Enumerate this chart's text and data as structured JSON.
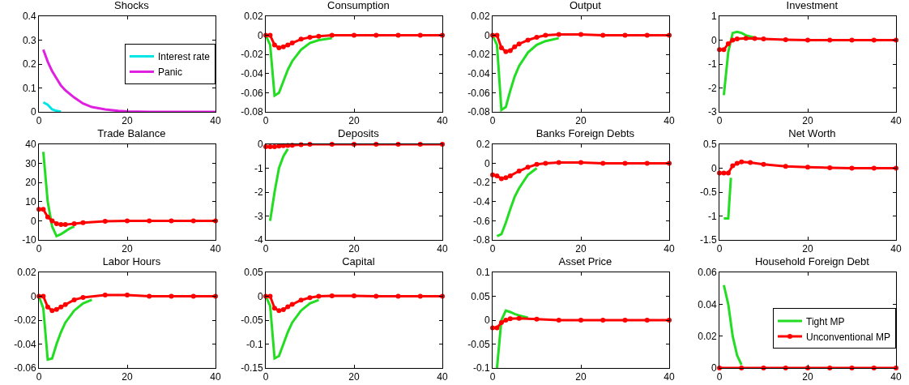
{
  "chart_data": [
    {
      "type": "line",
      "title": "Shocks",
      "xlim": [
        0,
        40
      ],
      "xticks": [
        0,
        20,
        40
      ],
      "ylim": [
        0,
        0.4
      ],
      "yticks": [
        0,
        0.1,
        0.2,
        0.3,
        0.4
      ],
      "grid": false,
      "legend": "right",
      "series": [
        {
          "name": "Interest rate",
          "color": "#00e5e5",
          "x": [
            1,
            2,
            3,
            4,
            5
          ],
          "values": [
            0.04,
            0.03,
            0.01,
            0.004,
            0.001
          ]
        },
        {
          "name": "Panic",
          "color": "#e020e0",
          "x": [
            1,
            2,
            3,
            4,
            5,
            6,
            8,
            10,
            12,
            15,
            18,
            20,
            25,
            30,
            40
          ],
          "values": [
            0.26,
            0.21,
            0.17,
            0.14,
            0.11,
            0.09,
            0.06,
            0.035,
            0.02,
            0.01,
            0.004,
            0.002,
            0,
            0,
            0
          ]
        }
      ]
    },
    {
      "type": "line",
      "title": "Consumption",
      "xlim": [
        0,
        40
      ],
      "xticks": [
        0,
        20,
        40
      ],
      "ylim": [
        -0.08,
        0.02
      ],
      "yticks": [
        -0.08,
        -0.06,
        -0.04,
        -0.02,
        0,
        0.02
      ],
      "grid": false,
      "series": [
        {
          "color": "#22dd22",
          "x": [
            0,
            1,
            2,
            3,
            4,
            5,
            6,
            8,
            10,
            12,
            15
          ],
          "values": [
            0,
            -0.01,
            -0.063,
            -0.06,
            -0.048,
            -0.036,
            -0.027,
            -0.015,
            -0.008,
            -0.005,
            -0.003
          ]
        },
        {
          "color": "#ff0000",
          "marker": "circle",
          "x": [
            0,
            1,
            2,
            3,
            4,
            5,
            6,
            8,
            10,
            12,
            15,
            20,
            25,
            30,
            35,
            40
          ],
          "values": [
            0,
            0,
            -0.01,
            -0.013,
            -0.012,
            -0.01,
            -0.008,
            -0.004,
            -0.002,
            -0.001,
            0,
            0,
            0,
            0,
            0,
            0
          ]
        }
      ]
    },
    {
      "type": "line",
      "title": "Output",
      "xlim": [
        0,
        40
      ],
      "xticks": [
        0,
        20,
        40
      ],
      "ylim": [
        -0.08,
        0.02
      ],
      "yticks": [
        -0.08,
        -0.06,
        -0.04,
        -0.02,
        0,
        0.02
      ],
      "grid": false,
      "series": [
        {
          "color": "#22dd22",
          "x": [
            0,
            1,
            2,
            3,
            4,
            5,
            6,
            8,
            10,
            12,
            15
          ],
          "values": [
            0,
            -0.01,
            -0.078,
            -0.075,
            -0.058,
            -0.043,
            -0.032,
            -0.018,
            -0.01,
            -0.006,
            -0.003
          ]
        },
        {
          "color": "#ff0000",
          "marker": "circle",
          "x": [
            0,
            1,
            2,
            3,
            4,
            5,
            6,
            8,
            10,
            12,
            15,
            20,
            25,
            30,
            35,
            40
          ],
          "values": [
            0,
            0,
            -0.013,
            -0.017,
            -0.016,
            -0.012,
            -0.009,
            -0.005,
            -0.002,
            0,
            0.001,
            0.001,
            0,
            0,
            0,
            0
          ]
        }
      ]
    },
    {
      "type": "line",
      "title": "Investment",
      "xlim": [
        0,
        40
      ],
      "xticks": [
        0,
        20,
        40
      ],
      "ylim": [
        -3,
        1
      ],
      "yticks": [
        -3,
        -2,
        -1,
        0,
        1
      ],
      "grid": false,
      "series": [
        {
          "color": "#22dd22",
          "x": [
            1,
            2,
            3,
            4,
            5,
            6,
            8
          ],
          "values": [
            -2.3,
            -0.5,
            0.3,
            0.35,
            0.3,
            0.2,
            0.1
          ]
        },
        {
          "color": "#ff0000",
          "marker": "circle",
          "x": [
            0,
            1,
            2,
            3,
            4,
            6,
            8,
            10,
            15,
            20,
            25,
            30,
            35,
            40
          ],
          "values": [
            -0.4,
            -0.4,
            -0.15,
            0,
            0.05,
            0.08,
            0.07,
            0.05,
            0.02,
            0,
            0,
            0,
            0,
            0
          ]
        }
      ]
    },
    {
      "type": "line",
      "title": "Trade Balance",
      "xlim": [
        0,
        40
      ],
      "xticks": [
        0,
        20,
        40
      ],
      "ylim": [
        -10,
        40
      ],
      "yticks": [
        -10,
        0,
        10,
        20,
        30,
        40
      ],
      "grid": false,
      "series": [
        {
          "color": "#22dd22",
          "x": [
            1,
            2,
            3,
            4,
            5,
            6,
            7,
            8
          ],
          "values": [
            36,
            10,
            -3,
            -8,
            -7,
            -5.5,
            -4,
            -3
          ]
        },
        {
          "color": "#ff0000",
          "marker": "circle",
          "x": [
            0,
            1,
            2,
            3,
            4,
            5,
            6,
            8,
            10,
            15,
            20,
            25,
            30,
            35,
            40
          ],
          "values": [
            6,
            6,
            2,
            0,
            -1.5,
            -2,
            -2,
            -1.5,
            -1,
            -0.3,
            0,
            0,
            0,
            0,
            0
          ]
        }
      ]
    },
    {
      "type": "line",
      "title": "Deposits",
      "xlim": [
        0,
        40
      ],
      "xticks": [
        0,
        20,
        40
      ],
      "ylim": [
        -4,
        0
      ],
      "yticks": [
        -4,
        -3,
        -2,
        -1,
        0
      ],
      "grid": false,
      "series": [
        {
          "color": "#22dd22",
          "x": [
            1,
            2,
            3,
            4,
            5
          ],
          "values": [
            -3.2,
            -2,
            -1,
            -0.5,
            -0.2
          ]
        },
        {
          "color": "#ff0000",
          "marker": "circle",
          "x": [
            0,
            1,
            2,
            3,
            4,
            5,
            6,
            8,
            10,
            15,
            20,
            25,
            30,
            35,
            40
          ],
          "values": [
            -0.1,
            -0.1,
            -0.1,
            -0.08,
            -0.06,
            -0.05,
            -0.04,
            -0.02,
            0,
            0,
            0,
            0,
            0,
            0,
            0
          ]
        }
      ]
    },
    {
      "type": "line",
      "title": "Banks Foreign Debts",
      "xlim": [
        0,
        40
      ],
      "xticks": [
        0,
        20,
        40
      ],
      "ylim": [
        -0.8,
        0.2
      ],
      "yticks": [
        -0.8,
        -0.6,
        -0.4,
        -0.2,
        0,
        0.2
      ],
      "grid": false,
      "series": [
        {
          "color": "#22dd22",
          "x": [
            1,
            2,
            3,
            4,
            5,
            6,
            8,
            10
          ],
          "values": [
            -0.76,
            -0.74,
            -0.62,
            -0.48,
            -0.35,
            -0.26,
            -0.12,
            -0.05
          ]
        },
        {
          "color": "#ff0000",
          "marker": "circle",
          "x": [
            0,
            1,
            2,
            3,
            4,
            6,
            8,
            10,
            12,
            15,
            20,
            25,
            30,
            35,
            40
          ],
          "values": [
            -0.12,
            -0.13,
            -0.16,
            -0.15,
            -0.13,
            -0.08,
            -0.04,
            -0.01,
            0,
            0.01,
            0.01,
            0,
            0,
            0,
            0
          ]
        }
      ]
    },
    {
      "type": "line",
      "title": "Net Worth",
      "xlim": [
        0,
        40
      ],
      "xticks": [
        0,
        20,
        40
      ],
      "ylim": [
        -1.5,
        0.5
      ],
      "yticks": [
        -1.5,
        -1,
        -0.5,
        0,
        0.5
      ],
      "grid": false,
      "series": [
        {
          "color": "#22dd22",
          "x": [
            1,
            2,
            2.6
          ],
          "values": [
            -1.05,
            -1.05,
            -0.2
          ]
        },
        {
          "color": "#ff0000",
          "marker": "circle",
          "x": [
            0,
            1,
            2,
            3,
            4,
            5,
            7,
            10,
            15,
            20,
            25,
            30,
            35,
            40
          ],
          "values": [
            -0.1,
            -0.1,
            -0.1,
            0.05,
            0.1,
            0.13,
            0.12,
            0.08,
            0.04,
            0.02,
            0.01,
            0,
            0,
            0
          ]
        }
      ]
    },
    {
      "type": "line",
      "title": "Labor Hours",
      "xlim": [
        0,
        40
      ],
      "xticks": [
        0,
        20,
        40
      ],
      "ylim": [
        -0.06,
        0.02
      ],
      "yticks": [
        -0.06,
        -0.04,
        -0.02,
        0,
        0.02
      ],
      "grid": false,
      "series": [
        {
          "color": "#22dd22",
          "x": [
            0,
            1,
            2,
            3,
            4,
            5,
            6,
            8,
            10,
            12
          ],
          "values": [
            0,
            -0.01,
            -0.053,
            -0.052,
            -0.04,
            -0.03,
            -0.022,
            -0.012,
            -0.006,
            -0.003
          ]
        },
        {
          "color": "#ff0000",
          "marker": "circle",
          "x": [
            0,
            1,
            2,
            3,
            4,
            5,
            6,
            8,
            10,
            15,
            20,
            25,
            30,
            35,
            40
          ],
          "values": [
            0,
            0,
            -0.009,
            -0.012,
            -0.011,
            -0.009,
            -0.007,
            -0.003,
            -0.001,
            0.001,
            0.001,
            0,
            0,
            0,
            0
          ]
        }
      ]
    },
    {
      "type": "line",
      "title": "Capital",
      "xlim": [
        0,
        40
      ],
      "xticks": [
        0,
        20,
        40
      ],
      "ylim": [
        -0.15,
        0.05
      ],
      "yticks": [
        -0.15,
        -0.1,
        -0.05,
        0,
        0.05
      ],
      "grid": false,
      "series": [
        {
          "color": "#22dd22",
          "x": [
            0,
            1,
            2,
            3,
            4,
            5,
            6,
            8,
            10,
            12
          ],
          "values": [
            0,
            -0.02,
            -0.13,
            -0.125,
            -0.1,
            -0.075,
            -0.055,
            -0.03,
            -0.015,
            -0.008
          ]
        },
        {
          "color": "#ff0000",
          "marker": "circle",
          "x": [
            0,
            1,
            2,
            3,
            4,
            5,
            6,
            8,
            10,
            12,
            15,
            20,
            25,
            30,
            35,
            40
          ],
          "values": [
            0,
            0,
            -0.025,
            -0.03,
            -0.028,
            -0.022,
            -0.017,
            -0.008,
            -0.003,
            0,
            0.001,
            0.001,
            0,
            0,
            0,
            0
          ]
        }
      ]
    },
    {
      "type": "line",
      "title": "Asset Price",
      "xlim": [
        0,
        40
      ],
      "xticks": [
        0,
        20,
        40
      ],
      "ylim": [
        -0.1,
        0.1
      ],
      "yticks": [
        -0.1,
        -0.05,
        0,
        0.05,
        0.1
      ],
      "grid": false,
      "series": [
        {
          "color": "#22dd22",
          "x": [
            1,
            2,
            3,
            4,
            5,
            6,
            8
          ],
          "values": [
            -0.1,
            0,
            0.02,
            0.017,
            0.013,
            0.01,
            0.005
          ]
        },
        {
          "color": "#ff0000",
          "marker": "circle",
          "x": [
            0,
            1,
            2,
            3,
            4,
            6,
            10,
            15,
            20,
            25,
            30,
            35,
            40
          ],
          "values": [
            -0.016,
            -0.016,
            -0.005,
            0,
            0.003,
            0.004,
            0.002,
            0,
            0,
            0,
            0,
            0,
            0
          ]
        }
      ]
    },
    {
      "type": "line",
      "title": "Household Foreign Debt",
      "xlim": [
        0,
        40
      ],
      "xticks": [
        0,
        20,
        40
      ],
      "ylim": [
        0,
        0.06
      ],
      "yticks": [
        0,
        0.02,
        0.04,
        0.06
      ],
      "grid": false,
      "legend": "bottom right",
      "series": [
        {
          "name": "Tight MP",
          "color": "#22dd22",
          "x": [
            1,
            2,
            3,
            4,
            5
          ],
          "values": [
            0.052,
            0.04,
            0.02,
            0.008,
            0.002
          ]
        },
        {
          "name": "Unconventional MP",
          "color": "#ff0000",
          "marker": "circle",
          "x": [
            0,
            5,
            10,
            15,
            20,
            25,
            30,
            35,
            40
          ],
          "values": [
            0,
            0,
            0,
            0,
            0,
            0,
            0,
            0,
            0
          ]
        }
      ]
    }
  ]
}
